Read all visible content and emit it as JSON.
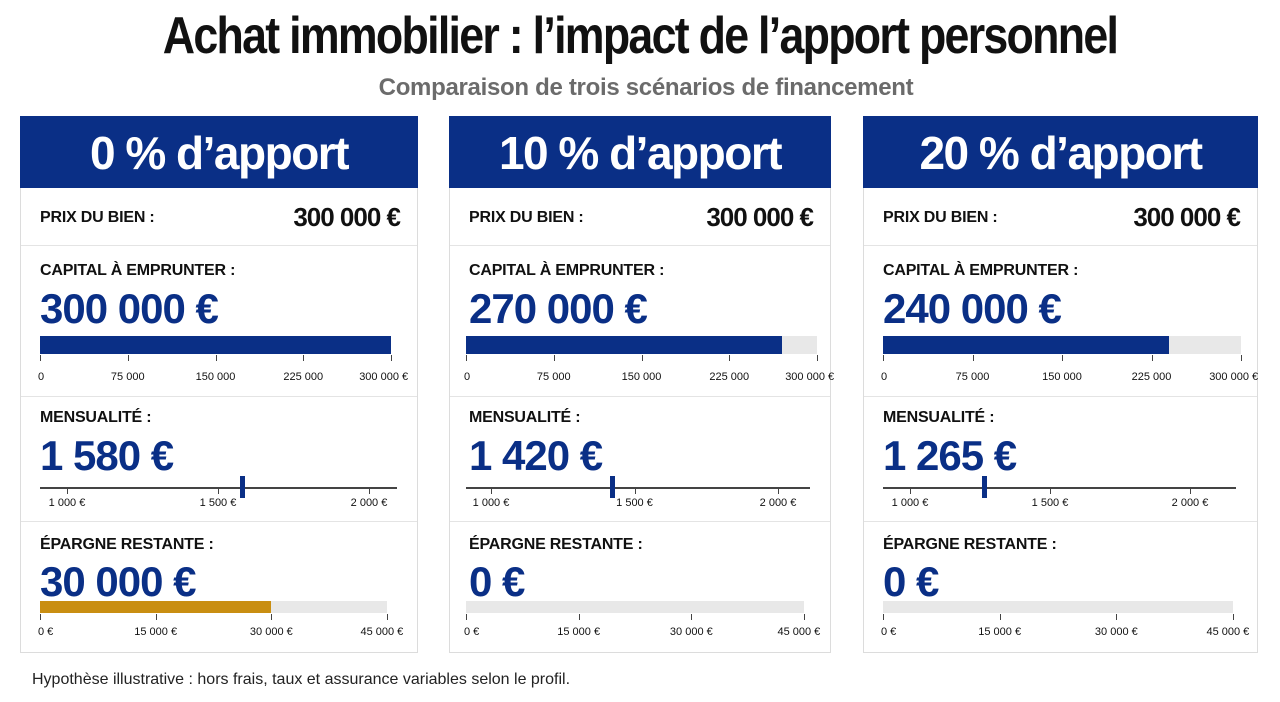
{
  "title": "Achat immobilier : l’impact de l’apport personnel",
  "subtitle": "Comparaison de trois scénarios de financement",
  "footnote": "Hypothèse illustrative : hors frais, taux et assurance variables selon le profil.",
  "colors": {
    "header": "#0a2f86",
    "bar_primary": "#0a2f86",
    "bar_savings": "#c98e12",
    "track": "#e8e8e8"
  },
  "chart_data": [
    {
      "type": "bar",
      "title": "0 % d’apport",
      "price_label": "PRIX DU BIEN :",
      "price_value": "300 000 €",
      "capital": {
        "label": "CAPITAL À EMPRUNTER :",
        "display": "300 000 €",
        "value": 300000,
        "range": [
          0,
          300000
        ],
        "ticks": [
          "0",
          "75 000",
          "150 000",
          "225 000",
          "300 000 €"
        ]
      },
      "monthly": {
        "label": "MENSUALITÉ :",
        "display": "1 580 €",
        "value": 1580,
        "range": [
          1000,
          2000
        ],
        "ticks": [
          "1 000 €",
          "1 500 €",
          "2 000 €"
        ]
      },
      "savings": {
        "label": "ÉPARGNE RESTANTE :",
        "display": "30 000 €",
        "value": 30000,
        "range": [
          0,
          45000
        ],
        "ticks": [
          "0 €",
          "15 000 €",
          "30 000 €",
          "45 000 €"
        ]
      }
    },
    {
      "type": "bar",
      "title": "10 % d’apport",
      "price_label": "PRIX DU BIEN :",
      "price_value": "300 000 €",
      "capital": {
        "label": "CAPITAL À EMPRUNTER :",
        "display": "270 000 €",
        "value": 270000,
        "range": [
          0,
          300000
        ],
        "ticks": [
          "0",
          "75 000",
          "150 000",
          "225 000",
          "300 000 €"
        ]
      },
      "monthly": {
        "label": "MENSUALITÉ :",
        "display": "1 420 €",
        "value": 1420,
        "range": [
          1000,
          2000
        ],
        "ticks": [
          "1 000 €",
          "1 500 €",
          "2 000 €"
        ]
      },
      "savings": {
        "label": "ÉPARGNE RESTANTE :",
        "display": "0 €",
        "value": 0,
        "range": [
          0,
          45000
        ],
        "ticks": [
          "0 €",
          "15 000 €",
          "30 000 €",
          "45 000 €"
        ]
      }
    },
    {
      "type": "bar",
      "title": "20 % d’apport",
      "price_label": "PRIX DU BIEN :",
      "price_value": "300 000 €",
      "capital": {
        "label": "CAPITAL À EMPRUNTER :",
        "display": "240 000 €",
        "value": 240000,
        "range": [
          0,
          300000
        ],
        "ticks": [
          "0",
          "75 000",
          "150 000",
          "225 000",
          "300 000 €"
        ]
      },
      "monthly": {
        "label": "MENSUALITÉ :",
        "display": "1 265 €",
        "value": 1265,
        "range": [
          1000,
          2000
        ],
        "ticks": [
          "1 000 €",
          "1 500 €",
          "2 000 €"
        ]
      },
      "savings": {
        "label": "ÉPARGNE RESTANTE :",
        "display": "0 €",
        "value": 0,
        "range": [
          0,
          45000
        ],
        "ticks": [
          "0 €",
          "15 000 €",
          "30 000 €",
          "45 000 €"
        ]
      }
    }
  ]
}
